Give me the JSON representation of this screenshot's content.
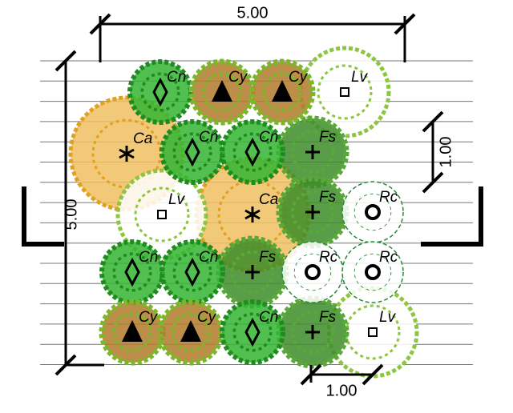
{
  "dimensions": {
    "top": "5.00",
    "left": "5.00",
    "right": "1.00",
    "bottom": "1.00"
  },
  "plants": [
    {
      "label": "Cn"
    },
    {
      "label": "Cy"
    },
    {
      "label": "Cy"
    },
    {
      "label": "Lv"
    },
    {
      "label": "Ca"
    },
    {
      "label": "Cn"
    },
    {
      "label": "Cn"
    },
    {
      "label": "Fs"
    },
    {
      "label": "Lv"
    },
    {
      "label": "Ca"
    },
    {
      "label": "Fs"
    },
    {
      "label": "Rc"
    },
    {
      "label": "Cn"
    },
    {
      "label": "Cn"
    },
    {
      "label": "Fs"
    },
    {
      "label": "Rc"
    },
    {
      "label": "Rc"
    },
    {
      "label": "Cy"
    },
    {
      "label": "Cy"
    },
    {
      "label": "Cn"
    },
    {
      "label": "Fs"
    },
    {
      "label": "Lv"
    }
  ]
}
